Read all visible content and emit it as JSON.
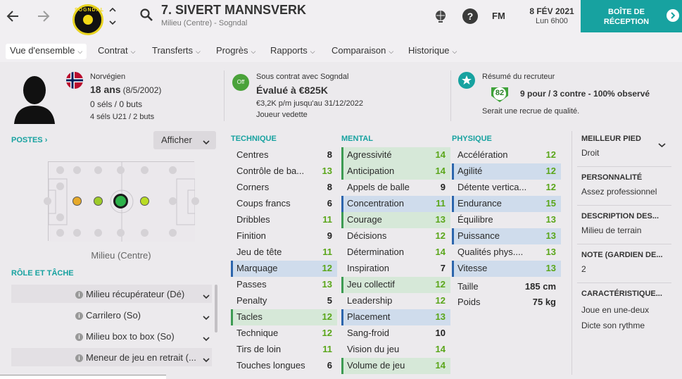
{
  "header": {
    "player_name": "7. SIVERT MANNSVERK",
    "player_sub": "Milieu (Centre) - Sogndal",
    "club_badge_text": "SOGNDAL",
    "fm_label": "FM",
    "date": "8 FÉV 2021",
    "time": "Lun 6h00",
    "inbox_line1": "BOÎTE DE",
    "inbox_line2": "RÉCEPTION",
    "help_glyph": "?",
    "icons": [
      "back-arrow-icon",
      "forward-arrow-icon",
      "search-icon",
      "globe-icon",
      "help-icon",
      "chevron-right-icon"
    ]
  },
  "tabs": [
    {
      "label": "Vue d'ensemble"
    },
    {
      "label": "Contrat"
    },
    {
      "label": "Transferts"
    },
    {
      "label": "Progrès"
    },
    {
      "label": "Rapports"
    },
    {
      "label": "Comparaison"
    },
    {
      "label": "Historique"
    }
  ],
  "profile": {
    "nationality": "Norvégien",
    "age": "18 ans",
    "birth": "(8/5/2002)",
    "selections": "0 séls / 0 buts",
    "u21": "4 séls U21 / 2 buts",
    "contract_with": "Sous contrat avec Sogndal",
    "value": "Évalué à €825K",
    "wage": "€3,2K p/m jusqu'au 31/12/2022",
    "role_status": "Joueur vedette",
    "off_label": "Off",
    "recruiter_title": "Résumé du recruteur",
    "recruiter_score": "82",
    "recruiter_summary": "9 pour / 3 contre - 100% observé",
    "recruiter_note": "Serait une recrue de qualité."
  },
  "positions": {
    "title": "POSTES",
    "show_button": "Afficher",
    "position_label": "Milieu (Centre)",
    "role_title": "RÔLE ET TÂCHE",
    "roles": [
      "Milieu récupérateur (Dé)",
      "Carrilero (So)",
      "Milieu box to box (So)",
      "Meneur de jeu en retrait (..."
    ]
  },
  "technique": {
    "title": "TECHNIQUE",
    "rows": [
      {
        "label": "Centres",
        "value": "8",
        "hl": ""
      },
      {
        "label": "Contrôle de ba...",
        "value": "13",
        "hl": ""
      },
      {
        "label": "Corners",
        "value": "8",
        "hl": ""
      },
      {
        "label": "Coups francs",
        "value": "6",
        "hl": ""
      },
      {
        "label": "Dribbles",
        "value": "11",
        "hl": ""
      },
      {
        "label": "Finition",
        "value": "9",
        "hl": ""
      },
      {
        "label": "Jeu de tête",
        "value": "11",
        "hl": ""
      },
      {
        "label": "Marquage",
        "value": "12",
        "hl": "b"
      },
      {
        "label": "Passes",
        "value": "13",
        "hl": ""
      },
      {
        "label": "Penalty",
        "value": "5",
        "hl": ""
      },
      {
        "label": "Tacles",
        "value": "12",
        "hl": "g"
      },
      {
        "label": "Technique",
        "value": "12",
        "hl": ""
      },
      {
        "label": "Tirs de loin",
        "value": "11",
        "hl": ""
      },
      {
        "label": "Touches longues",
        "value": "6",
        "hl": ""
      }
    ]
  },
  "mental": {
    "title": "MENTAL",
    "rows": [
      {
        "label": "Agressivité",
        "value": "14",
        "hl": "g"
      },
      {
        "label": "Anticipation",
        "value": "14",
        "hl": "g"
      },
      {
        "label": "Appels de balle",
        "value": "9",
        "hl": ""
      },
      {
        "label": "Concentration",
        "value": "11",
        "hl": "b"
      },
      {
        "label": "Courage",
        "value": "13",
        "hl": "g"
      },
      {
        "label": "Décisions",
        "value": "12",
        "hl": ""
      },
      {
        "label": "Détermination",
        "value": "14",
        "hl": ""
      },
      {
        "label": "Inspiration",
        "value": "7",
        "hl": ""
      },
      {
        "label": "Jeu collectif",
        "value": "12",
        "hl": "g"
      },
      {
        "label": "Leadership",
        "value": "12",
        "hl": ""
      },
      {
        "label": "Placement",
        "value": "13",
        "hl": "b"
      },
      {
        "label": "Sang-froid",
        "value": "10",
        "hl": ""
      },
      {
        "label": "Vision du jeu",
        "value": "14",
        "hl": ""
      },
      {
        "label": "Volume de jeu",
        "value": "14",
        "hl": "g"
      }
    ]
  },
  "physique": {
    "title": "PHYSIQUE",
    "rows": [
      {
        "label": "Accélération",
        "value": "12",
        "hl": ""
      },
      {
        "label": "Agilité",
        "value": "12",
        "hl": "b"
      },
      {
        "label": "Détente vertica...",
        "value": "12",
        "hl": ""
      },
      {
        "label": "Endurance",
        "value": "15",
        "hl": "b"
      },
      {
        "label": "Équilibre",
        "value": "13",
        "hl": ""
      },
      {
        "label": "Puissance",
        "value": "13",
        "hl": "b"
      },
      {
        "label": "Qualités phys....",
        "value": "13",
        "hl": ""
      },
      {
        "label": "Vitesse",
        "value": "13",
        "hl": "b"
      }
    ],
    "height_label": "Taille",
    "height_value": "185 cm",
    "weight_label": "Poids",
    "weight_value": "75 kg"
  },
  "info": {
    "foot_title": "MEILLEUR PIED",
    "foot_value": "Droit",
    "personality_title": "PERSONNALITÉ",
    "personality_value": "Assez professionnel",
    "description_title": "DESCRIPTION DES...",
    "description_value": "Milieu de terrain",
    "gk_title": "NOTE (GARDIEN DE...",
    "gk_value": "2",
    "traits_title": "CARACTÉRISTIQUE...",
    "traits": [
      "Joue en une-deux",
      "Dicte son rythme"
    ]
  }
}
